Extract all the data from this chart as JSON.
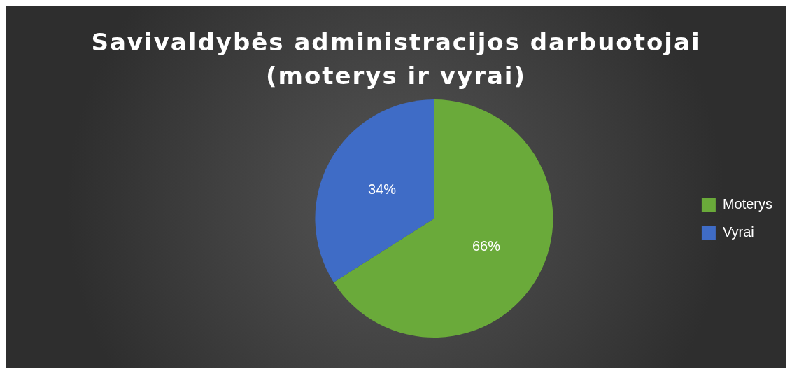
{
  "chart_data": {
    "type": "pie",
    "title": "Savivaldybės administracijos darbuotojai (moterys ir vyrai)",
    "categories": [
      "Moterys",
      "Vyrai"
    ],
    "values": [
      66,
      34
    ],
    "colors": [
      "#6aaa3a",
      "#3f6cc6"
    ],
    "value_labels": [
      "66%",
      "34%"
    ],
    "legend": "right"
  }
}
